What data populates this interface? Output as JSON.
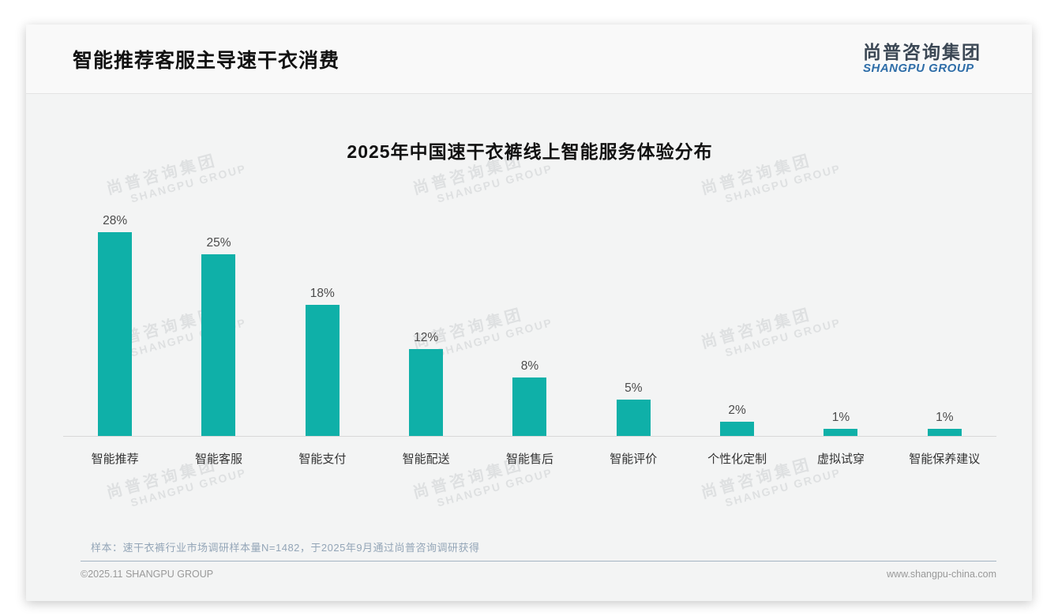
{
  "page": {
    "header": {
      "title": "智能推荐客服主导速干衣消费",
      "logo_cn": "尚普咨询集团",
      "logo_en": "SHANGPU GROUP"
    },
    "footnote": "样本：速干衣裤行业市场调研样本量N=1482，于2025年9月通过尚普咨询调研获得",
    "footer": {
      "copyright": "©2025.11 SHANGPU GROUP",
      "website": "www.shangpu-china.com"
    },
    "watermark": {
      "line1": "尚普咨询集团",
      "line2": "SHANGPU GROUP"
    }
  },
  "chart_data": {
    "type": "bar",
    "title": "2025年中国速干衣裤线上智能服务体验分布",
    "categories": [
      "智能推荐",
      "智能客服",
      "智能支付",
      "智能配送",
      "智能售后",
      "智能评价",
      "个性化定制",
      "虚拟试穿",
      "智能保养建议"
    ],
    "values": [
      28,
      25,
      18,
      12,
      8,
      5,
      2,
      1,
      1
    ],
    "value_labels": [
      "28%",
      "25%",
      "18%",
      "12%",
      "8%",
      "5%",
      "2%",
      "1%",
      "1%"
    ],
    "unit": "%",
    "bar_color": "#0FB0A8",
    "ylim": [
      0,
      30
    ],
    "grid": false,
    "legend": null,
    "value_label_position": "above",
    "xlabel": "",
    "ylabel": ""
  }
}
